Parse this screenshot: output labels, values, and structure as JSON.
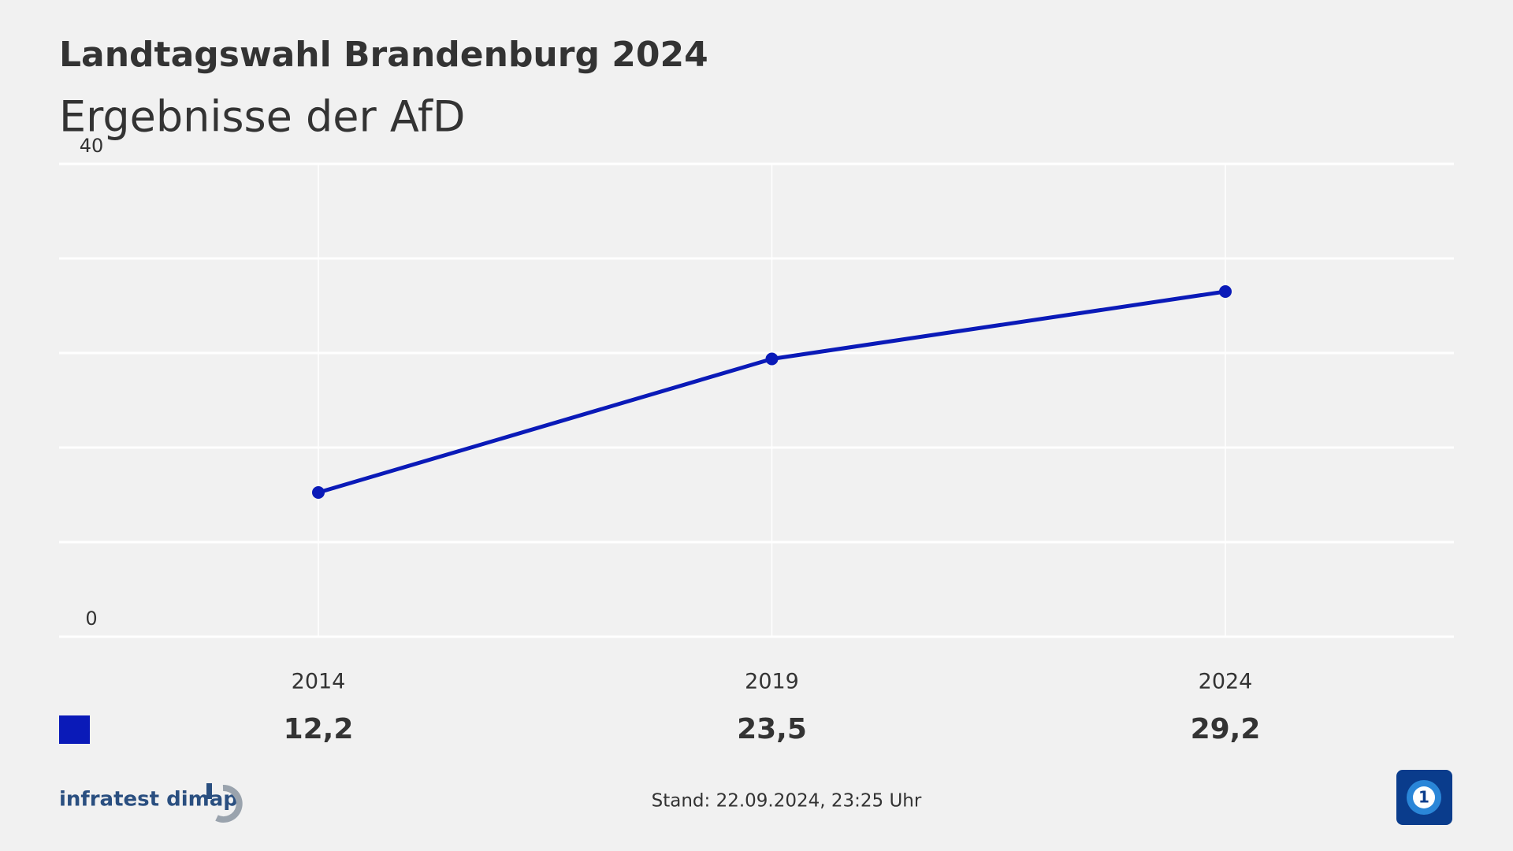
{
  "chart_data": {
    "type": "line",
    "title": "Landtagswahl Brandenburg 2024",
    "subtitle": "Ergebnisse der AfD",
    "categories": [
      "2014",
      "2019",
      "2024"
    ],
    "values": [
      12.2,
      23.5,
      29.2
    ],
    "value_labels": [
      "12,2",
      "23,5",
      "29,2"
    ],
    "color": "#0a1ab8",
    "ylim": [
      0,
      40
    ],
    "yticks": [
      0,
      40
    ],
    "ygrid": [
      0,
      8,
      16,
      24,
      32,
      40
    ],
    "grid": true,
    "source": "infratest dimap",
    "note": "Stand:  22.09.2024, 23:25 Uhr"
  }
}
